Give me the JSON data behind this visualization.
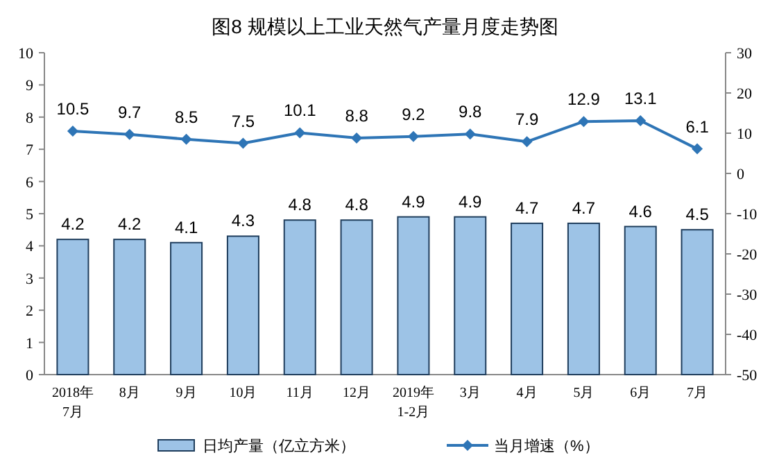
{
  "chart_data": {
    "type": "bar",
    "title": "图8  规模以上工业天然气产量月度走势图",
    "categories": [
      "2018年\n7月",
      "8月",
      "9月",
      "10月",
      "11月",
      "12月",
      "2019年\n1-2月",
      "3月",
      "4月",
      "5月",
      "6月",
      "7月"
    ],
    "series": [
      {
        "name": "日均产量（亿立方米）",
        "color": "#9dc3e6",
        "values": [
          4.2,
          4.2,
          4.1,
          4.3,
          4.8,
          4.8,
          4.9,
          4.9,
          4.7,
          4.7,
          4.6,
          4.5
        ]
      },
      {
        "name": "当月增速（%）",
        "type": "line",
        "axis": "y2",
        "color": "#2e75b6",
        "marker": "diamond",
        "values": [
          10.5,
          9.7,
          8.5,
          7.5,
          10.1,
          8.8,
          9.2,
          9.8,
          7.9,
          12.9,
          13.1,
          6.1
        ]
      }
    ],
    "ylim": [
      0,
      10
    ],
    "yticks": [
      0,
      1,
      2,
      3,
      4,
      5,
      6,
      7,
      8,
      9,
      10
    ],
    "y2lim": [
      -50,
      30
    ],
    "y2ticks": [
      -50,
      -40,
      -30,
      -20,
      -10,
      0,
      10,
      20,
      30
    ],
    "data_labels": true,
    "legend": "bottom"
  }
}
